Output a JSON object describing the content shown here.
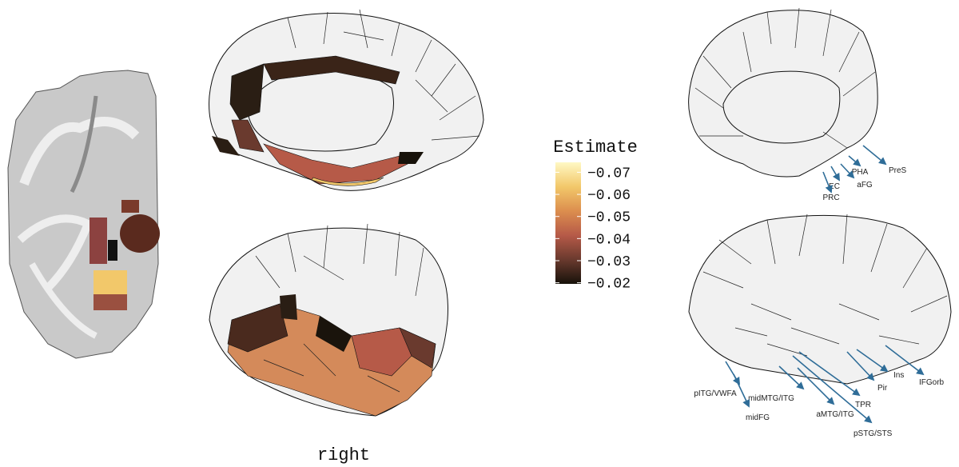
{
  "colorbar": {
    "title": "Estimate",
    "lim": [
      -0.0745,
      -0.0195
    ],
    "ticks": [
      {
        "value": -0.07,
        "label": "−0.07"
      },
      {
        "value": -0.06,
        "label": "−0.06"
      },
      {
        "value": -0.05,
        "label": "−0.05"
      },
      {
        "value": -0.04,
        "label": "−0.04"
      },
      {
        "value": -0.03,
        "label": "−0.03"
      },
      {
        "value": -0.02,
        "label": "−0.02"
      }
    ],
    "colors": [
      "#fff8c4",
      "#f2c86a",
      "#dc8e4e",
      "#b65a48",
      "#6a3a2e",
      "#17120a"
    ]
  },
  "caption": "right",
  "medial_labels": [
    "PreS",
    "PHA",
    "aFG",
    "EC",
    "PRC"
  ],
  "lateral_labels": [
    "Ins",
    "IFGorb",
    "Pir",
    "TPR",
    "pSTG/STS",
    "aMTG/ITG",
    "midMTG/ITG",
    "midFG",
    "pITG/VWFA"
  ]
}
